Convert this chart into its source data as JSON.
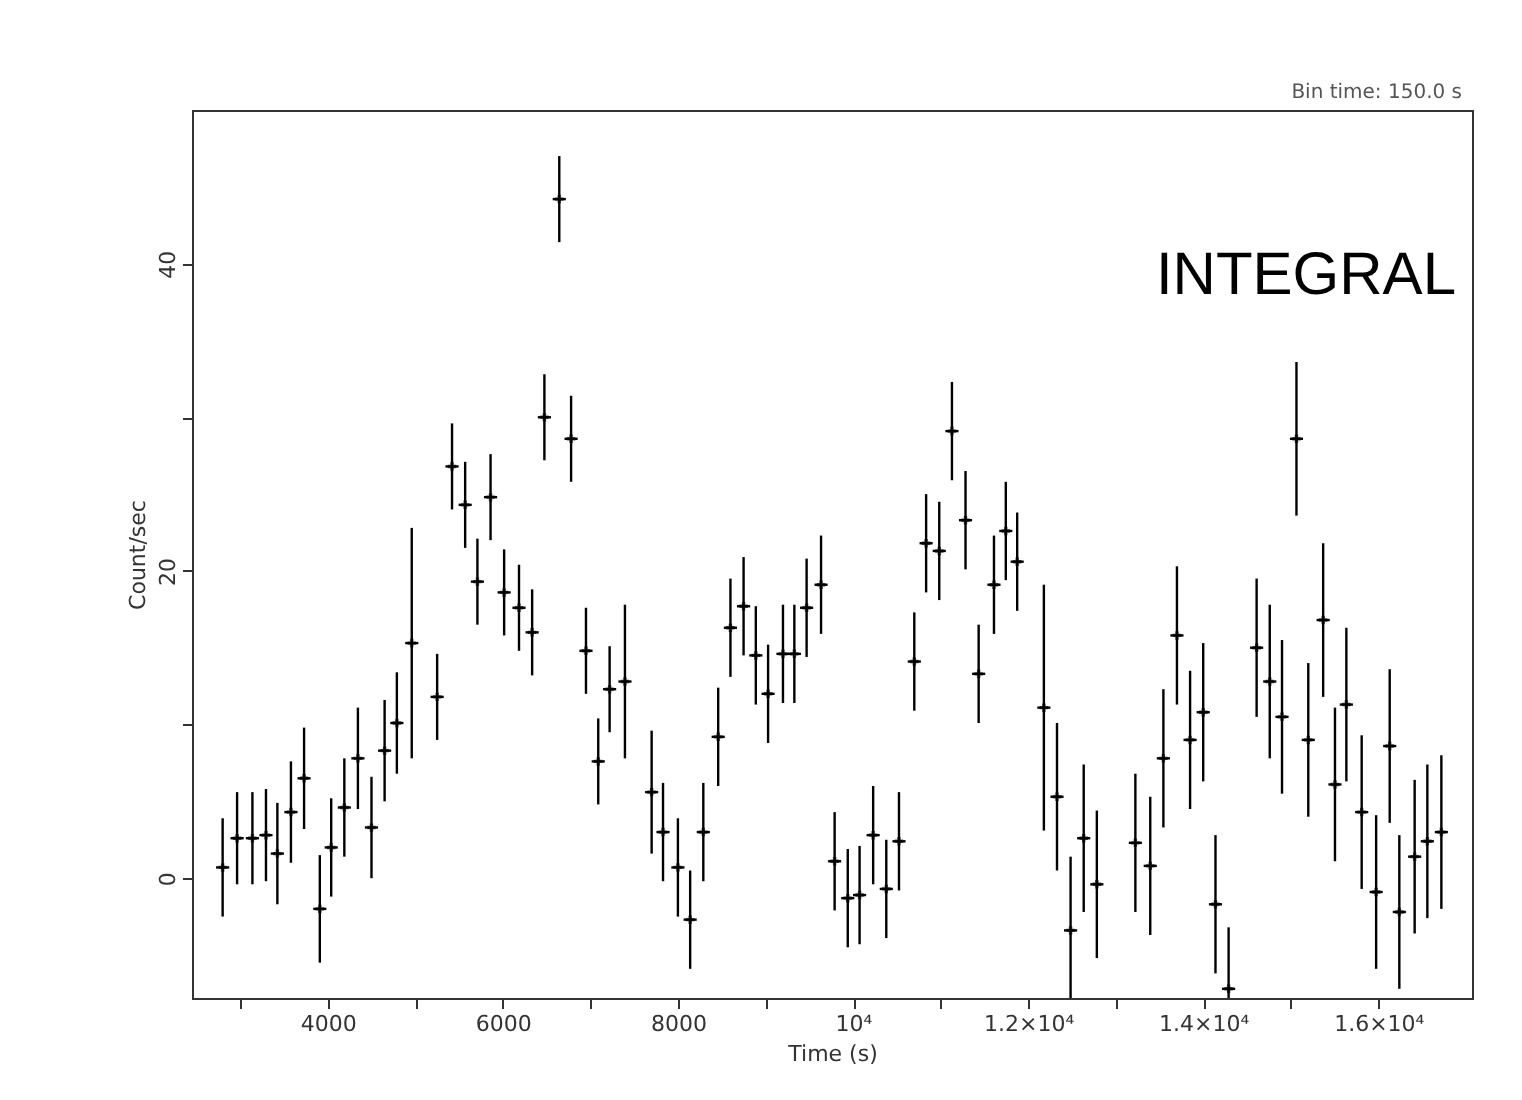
{
  "chart_data": {
    "type": "scatter",
    "xlabel": "Time (s)",
    "ylabel": "Count/sec",
    "grid": false,
    "marker": "cross",
    "legend": false,
    "annotations": [
      "Bin time:    150.0    s",
      "INTEGRAL"
    ],
    "xlim": [
      2450,
      17070
    ],
    "ylim": [
      -7.8,
      50
    ],
    "xticks": [
      {
        "value": 3000,
        "label": null
      },
      4000,
      {
        "value": 5000,
        "label": null
      },
      6000,
      {
        "value": 7000,
        "label": null
      },
      8000,
      {
        "value": 9000,
        "label": null
      },
      {
        "value": 10000,
        "label": "10⁴"
      },
      {
        "value": 11000,
        "label": null
      },
      {
        "value": 12000,
        "label": "1.2×10⁴"
      },
      {
        "value": 13000,
        "label": null
      },
      {
        "value": 14000,
        "label": "1.4×10⁴"
      },
      {
        "value": 15000,
        "label": null
      },
      {
        "value": 16000,
        "label": "1.6×10⁴"
      }
    ],
    "yticks": [
      0,
      {
        "value": 10,
        "label": null
      },
      20,
      {
        "value": 30,
        "label": null
      },
      40
    ],
    "series": [
      {
        "color": "#000000",
        "x": [
          2800,
          2965,
          3140,
          3295,
          3425,
          3580,
          3730,
          3910,
          4040,
          4190,
          4345,
          4500,
          4650,
          4790,
          4960,
          5250,
          5420,
          5570,
          5710,
          5860,
          6015,
          6185,
          6335,
          6475,
          6645,
          6780,
          6950,
          7090,
          7220,
          7395,
          7700,
          7830,
          8000,
          8140,
          8290,
          8460,
          8600,
          8750,
          8890,
          9030,
          9200,
          9330,
          9470,
          9635,
          9790,
          9940,
          10075,
          10230,
          10380,
          10525,
          10700,
          10835,
          10985,
          11130,
          11285,
          11435,
          11610,
          11745,
          11875,
          12180,
          12330,
          12485,
          12635,
          12785,
          13225,
          13395,
          13545,
          13700,
          13850,
          14000,
          14140,
          14290,
          14610,
          14760,
          14900,
          15065,
          15200,
          15370,
          15505,
          15635,
          15810,
          15975,
          16130,
          16240,
          16415,
          16560,
          16720
        ],
        "values": [
          0.7,
          2.6,
          2.6,
          2.8,
          1.6,
          4.3,
          6.5,
          -2.0,
          2.0,
          4.6,
          7.8,
          3.3,
          8.3,
          10.1,
          15.3,
          11.8,
          26.8,
          24.3,
          19.3,
          24.8,
          18.6,
          17.6,
          16.0,
          30.0,
          44.2,
          28.6,
          14.8,
          7.6,
          12.3,
          12.8,
          5.6,
          3.0,
          0.7,
          -2.7,
          3.0,
          9.2,
          16.3,
          17.7,
          14.5,
          12.0,
          14.6,
          14.6,
          17.6,
          19.1,
          1.1,
          -1.3,
          -1.1,
          2.8,
          -0.7,
          2.4,
          14.1,
          21.8,
          21.3,
          29.1,
          23.3,
          13.3,
          19.1,
          22.6,
          20.6,
          11.1,
          5.3,
          -3.4,
          2.6,
          -0.4,
          2.3,
          0.8,
          7.8,
          15.8,
          9.0,
          10.8,
          -1.7,
          -7.2,
          15.0,
          12.8,
          10.5,
          28.6,
          9.0,
          16.8,
          6.1,
          11.3,
          4.3,
          -0.9,
          8.6,
          -2.2,
          1.4,
          2.4,
          3.0
        ],
        "errors": [
          3.2,
          3.0,
          3.0,
          3.0,
          3.3,
          3.3,
          3.3,
          3.5,
          3.2,
          3.2,
          3.3,
          3.3,
          3.3,
          3.3,
          7.5,
          2.8,
          2.8,
          2.8,
          2.8,
          2.8,
          2.8,
          2.8,
          2.8,
          2.8,
          2.8,
          2.8,
          2.8,
          2.8,
          2.8,
          5.0,
          4.0,
          3.2,
          3.2,
          3.2,
          3.2,
          3.2,
          3.2,
          3.2,
          3.2,
          3.2,
          3.2,
          3.2,
          3.2,
          3.2,
          3.2,
          3.2,
          3.2,
          3.2,
          3.2,
          3.2,
          3.2,
          3.2,
          3.2,
          3.2,
          3.2,
          3.2,
          3.2,
          3.2,
          3.2,
          8.0,
          4.8,
          4.8,
          4.8,
          4.8,
          4.5,
          4.5,
          4.5,
          4.5,
          4.5,
          4.5,
          4.5,
          4.0,
          4.5,
          5.0,
          5.0,
          5.0,
          5.0,
          5.0,
          5.0,
          5.0,
          5.0,
          5.0,
          5.0,
          5.0,
          5.0,
          5.0,
          5.0
        ],
        "xerrors": [
          75,
          75,
          75,
          75,
          75,
          75,
          75,
          75,
          75,
          75,
          75,
          75,
          75,
          75,
          75,
          75,
          75,
          75,
          75,
          75,
          75,
          75,
          75,
          75,
          75,
          75,
          75,
          75,
          75,
          75,
          75,
          75,
          75,
          75,
          75,
          75,
          75,
          75,
          75,
          75,
          75,
          75,
          75,
          75,
          75,
          75,
          75,
          75,
          75,
          75,
          75,
          75,
          75,
          75,
          75,
          75,
          75,
          75,
          75,
          75,
          75,
          75,
          75,
          75,
          75,
          75,
          75,
          75,
          75,
          75,
          75,
          75,
          75,
          75,
          75,
          75,
          75,
          75,
          75,
          75,
          75,
          75,
          75,
          75,
          75,
          75,
          75
        ]
      }
    ]
  }
}
